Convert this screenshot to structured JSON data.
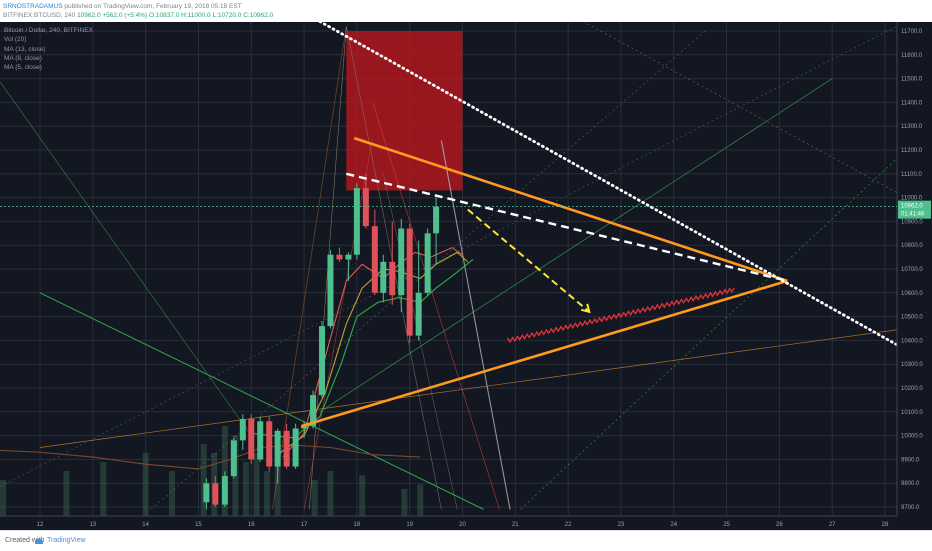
{
  "header": {
    "author": "SRNOSTRADAMUS",
    "published": "published on TradingView.com, February 19, 2018 05:18 EST",
    "symbol": "BITFINEX:BTCUSD, 240",
    "last": "10962.0",
    "change": "+562.0 (+5.4%)",
    "ohlc": "O:10837.0 H:11000.0 L:10720.0 C:10962.0"
  },
  "legend": {
    "title": "Bitcoin / Dollar, 240, BITFINEX",
    "items": [
      "Vol (20)",
      "MA (13, close)",
      "MA (8, close)",
      "MA (5, close)"
    ]
  },
  "footer": {
    "created": "Created with",
    "brand": "TradingView"
  },
  "colors": {
    "background": "#131722",
    "up": "#4fbf8e",
    "down": "#e0525a",
    "orange": "#ff9a1f",
    "supply_zone": "#b0181d"
  },
  "chart_data": {
    "type": "candlestick",
    "xlabels": [
      "12",
      "13",
      "14",
      "15",
      "16",
      "17",
      "18",
      "19",
      "20",
      "21",
      "22",
      "23",
      "24",
      "25",
      "26",
      "27",
      "28"
    ],
    "ylabels": [
      "11700.0",
      "11600.0",
      "11500.0",
      "11400.0",
      "11300.0",
      "11200.0",
      "11100.0",
      "11000.0",
      "10900.0",
      "10800.0",
      "10700.0",
      "10600.0",
      "10500.0",
      "10400.0",
      "10300.0",
      "10200.0",
      "10100.0",
      "10000.0",
      "9900.0",
      "9800.0",
      "9700.0"
    ],
    "ylim": [
      9690,
      11700
    ],
    "price_tag": "10962.0",
    "time_tag": "01:41:46",
    "candles": [
      {
        "x": 15.15,
        "o": 9720,
        "h": 9820,
        "l": 9690,
        "c": 9800
      },
      {
        "x": 15.32,
        "o": 9800,
        "h": 9830,
        "l": 9700,
        "c": 9710
      },
      {
        "x": 15.5,
        "o": 9710,
        "h": 9850,
        "l": 9700,
        "c": 9830
      },
      {
        "x": 15.67,
        "o": 9830,
        "h": 9990,
        "l": 9820,
        "c": 9980
      },
      {
        "x": 15.84,
        "o": 9980,
        "h": 10090,
        "l": 9940,
        "c": 10070
      },
      {
        "x": 16.0,
        "o": 10070,
        "h": 10090,
        "l": 9880,
        "c": 9900
      },
      {
        "x": 16.17,
        "o": 9900,
        "h": 10080,
        "l": 9890,
        "c": 10060
      },
      {
        "x": 16.34,
        "o": 10060,
        "h": 10080,
        "l": 9850,
        "c": 9870
      },
      {
        "x": 16.5,
        "o": 9870,
        "h": 10030,
        "l": 9800,
        "c": 10020
      },
      {
        "x": 16.67,
        "o": 10020,
        "h": 10050,
        "l": 9860,
        "c": 9870
      },
      {
        "x": 16.84,
        "o": 9870,
        "h": 10050,
        "l": 9860,
        "c": 10030
      },
      {
        "x": 17.0,
        "o": 10030,
        "h": 10060,
        "l": 9990,
        "c": 10040
      },
      {
        "x": 17.17,
        "o": 10040,
        "h": 10190,
        "l": 10030,
        "c": 10170
      },
      {
        "x": 17.34,
        "o": 10170,
        "h": 10480,
        "l": 10160,
        "c": 10460
      },
      {
        "x": 17.5,
        "o": 10460,
        "h": 10780,
        "l": 10450,
        "c": 10760
      },
      {
        "x": 17.67,
        "o": 10760,
        "h": 10790,
        "l": 10730,
        "c": 10740
      },
      {
        "x": 17.84,
        "o": 10740,
        "h": 10770,
        "l": 10650,
        "c": 10760
      },
      {
        "x": 18.0,
        "o": 10760,
        "h": 11060,
        "l": 10740,
        "c": 11040
      },
      {
        "x": 18.17,
        "o": 11040,
        "h": 11100,
        "l": 10870,
        "c": 10880
      },
      {
        "x": 18.34,
        "o": 10880,
        "h": 10950,
        "l": 10590,
        "c": 10600
      },
      {
        "x": 18.5,
        "o": 10600,
        "h": 10760,
        "l": 10560,
        "c": 10730
      },
      {
        "x": 18.67,
        "o": 10730,
        "h": 10900,
        "l": 10550,
        "c": 10590
      },
      {
        "x": 18.84,
        "o": 10590,
        "h": 10910,
        "l": 10520,
        "c": 10870
      },
      {
        "x": 19.0,
        "o": 10870,
        "h": 10890,
        "l": 10390,
        "c": 10420
      },
      {
        "x": 19.17,
        "o": 10420,
        "h": 10820,
        "l": 10400,
        "c": 10600
      },
      {
        "x": 19.34,
        "o": 10600,
        "h": 10870,
        "l": 10590,
        "c": 10850
      },
      {
        "x": 19.5,
        "o": 10850,
        "h": 11000,
        "l": 10720,
        "c": 10962
      }
    ],
    "volume": [
      {
        "x": 11.3,
        "h": 0.4
      },
      {
        "x": 12.5,
        "h": 0.5
      },
      {
        "x": 13.2,
        "h": 0.6
      },
      {
        "x": 14.0,
        "h": 0.7
      },
      {
        "x": 14.5,
        "h": 0.5
      },
      {
        "x": 15.1,
        "h": 0.8
      },
      {
        "x": 15.3,
        "h": 0.7
      },
      {
        "x": 15.5,
        "h": 1.0
      },
      {
        "x": 15.7,
        "h": 0.9
      },
      {
        "x": 15.9,
        "h": 0.6
      },
      {
        "x": 16.1,
        "h": 0.7
      },
      {
        "x": 16.3,
        "h": 0.5
      },
      {
        "x": 16.5,
        "h": 0.6
      },
      {
        "x": 17.2,
        "h": 0.4
      },
      {
        "x": 17.5,
        "h": 0.5
      },
      {
        "x": 18.1,
        "h": 0.45
      },
      {
        "x": 18.9,
        "h": 0.3
      },
      {
        "x": 19.2,
        "h": 0.35
      }
    ],
    "ma_13": [
      [
        16.0,
        10010
      ],
      [
        16.8,
        9990
      ],
      [
        17.3,
        10080
      ],
      [
        17.7,
        10300
      ],
      [
        18.0,
        10500
      ],
      [
        18.4,
        10560
      ],
      [
        18.8,
        10580
      ],
      [
        19.2,
        10560
      ],
      [
        19.5,
        10620
      ],
      [
        19.8,
        10670
      ],
      [
        20.2,
        10740
      ]
    ],
    "ma_8": [
      [
        16.5,
        9920
      ],
      [
        17.0,
        10000
      ],
      [
        17.4,
        10180
      ],
      [
        17.8,
        10470
      ],
      [
        18.1,
        10620
      ],
      [
        18.5,
        10700
      ],
      [
        18.8,
        10690
      ],
      [
        19.2,
        10660
      ],
      [
        19.5,
        10720
      ],
      [
        19.9,
        10770
      ],
      [
        20.1,
        10730
      ]
    ],
    "ma_5": [
      [
        16.6,
        9910
      ],
      [
        17.0,
        10010
      ],
      [
        17.4,
        10330
      ],
      [
        17.8,
        10650
      ],
      [
        18.1,
        10720
      ],
      [
        18.5,
        10660
      ],
      [
        18.8,
        10720
      ],
      [
        19.1,
        10770
      ],
      [
        19.4,
        10750
      ],
      [
        19.8,
        10790
      ],
      [
        20.0,
        10760
      ]
    ],
    "supply_zone": {
      "x0": 17.8,
      "x1": 20.0,
      "y0": 11030,
      "y1": 11700
    },
    "triangle": {
      "apex": [
        26.15,
        10650
      ],
      "upper_start": [
        17.95,
        11250
      ],
      "lower_start": [
        16.95,
        10040
      ]
    },
    "dashed_white": [
      [
        17.8,
        11100
      ],
      [
        26.15,
        10650
      ]
    ],
    "dotted_white": [
      [
        17.3,
        11740
      ],
      [
        28.4,
        10360
      ]
    ],
    "dashed_yellow": [
      [
        20.1,
        10950
      ],
      [
        22.4,
        10520
      ]
    ],
    "red_arrows": [
      [
        20.9,
        10400
      ],
      [
        25.1,
        10610
      ]
    ]
  }
}
